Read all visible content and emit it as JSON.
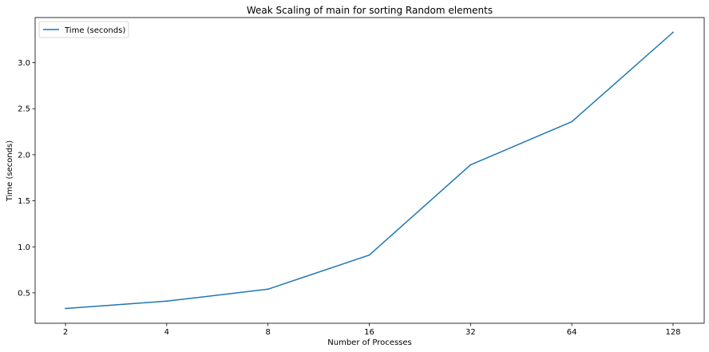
{
  "chart_data": {
    "type": "line",
    "title": "Weak Scaling of main for sorting Random elements",
    "xlabel": "Number of Processes",
    "ylabel": "Time (seconds)",
    "categories": [
      "2",
      "4",
      "8",
      "16",
      "32",
      "64",
      "128"
    ],
    "series": [
      {
        "name": "Time (seconds)",
        "values": [
          0.33,
          0.41,
          0.54,
          0.91,
          1.89,
          2.36,
          3.33
        ],
        "color": "#1f77b4"
      }
    ],
    "yticks": [
      "0.5",
      "1.0",
      "1.5",
      "2.0",
      "2.5",
      "3.0"
    ],
    "ylim": [
      0.17,
      3.49
    ],
    "grid": false,
    "legend_position": "top-left"
  }
}
